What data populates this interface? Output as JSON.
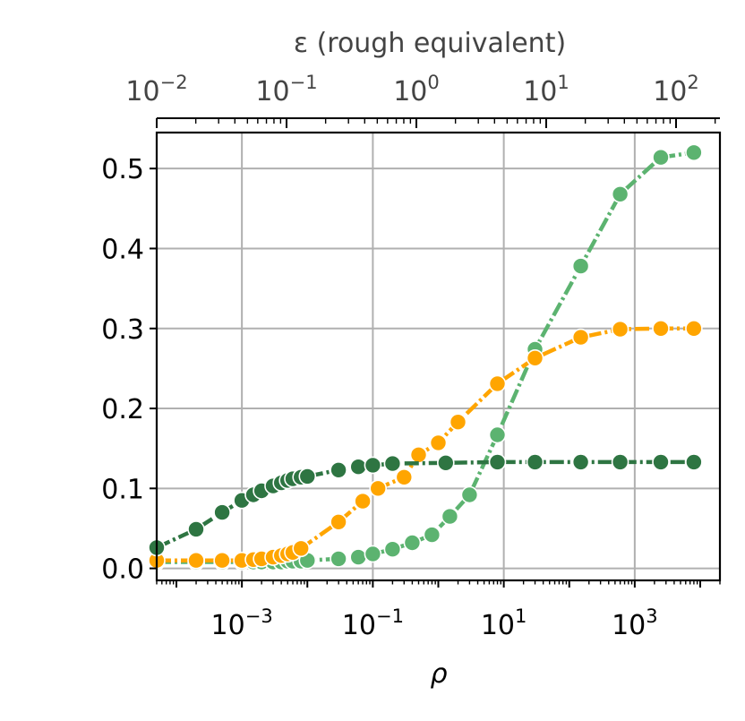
{
  "chart_data": {
    "type": "line",
    "x_scale": "log",
    "xlabel": "ρ",
    "xlim": [
      5e-05,
      20000
    ],
    "x_ticks": [
      {
        "value": 0.001,
        "label_base": "10",
        "label_exp": "−3"
      },
      {
        "value": 0.1,
        "label_base": "10",
        "label_exp": "−1"
      },
      {
        "value": 10,
        "label_base": "10",
        "label_exp": "1"
      },
      {
        "value": 1000,
        "label_base": "10",
        "label_exp": "3"
      }
    ],
    "top_axis": {
      "xlabel": "ε (rough equivalent)",
      "ticks": [
        {
          "label_base": "10",
          "label_exp": "−2"
        },
        {
          "label_base": "10",
          "label_exp": "−1"
        },
        {
          "label_base": "10",
          "label_exp": "0"
        },
        {
          "label_base": "10",
          "label_exp": "1"
        },
        {
          "label_base": "10",
          "label_exp": "2"
        }
      ]
    },
    "ylim": [
      -0.015,
      0.545
    ],
    "y_ticks": [
      "0.0",
      "0.1",
      "0.2",
      "0.3",
      "0.4",
      "0.5"
    ],
    "grid": true,
    "legend": "none",
    "series": [
      {
        "color": "#5cb370",
        "line_style": "dash-dot",
        "x": [
          5e-05,
          0.0002,
          0.0005,
          0.001,
          0.0015,
          0.002,
          0.003,
          0.004,
          0.005,
          0.006,
          0.008,
          0.01,
          0.03,
          0.06,
          0.1,
          0.2,
          0.4,
          0.8,
          1.5,
          3,
          8,
          30,
          150,
          600,
          2500,
          8000
        ],
        "y": [
          0.008,
          0.008,
          0.008,
          0.008,
          0.008,
          0.008,
          0.008,
          0.008,
          0.009,
          0.009,
          0.009,
          0.01,
          0.012,
          0.014,
          0.018,
          0.024,
          0.032,
          0.042,
          0.065,
          0.092,
          0.167,
          0.274,
          0.378,
          0.468,
          0.514,
          0.52
        ]
      },
      {
        "color": "#ffa500",
        "line_style": "dash-dot",
        "x": [
          5e-05,
          0.0002,
          0.0005,
          0.001,
          0.0015,
          0.002,
          0.003,
          0.004,
          0.005,
          0.006,
          0.008,
          0.03,
          0.07,
          0.12,
          0.3,
          0.5,
          1,
          2,
          8,
          30,
          150,
          600,
          2500,
          8000
        ],
        "y": [
          0.01,
          0.01,
          0.01,
          0.01,
          0.011,
          0.012,
          0.014,
          0.016,
          0.018,
          0.02,
          0.025,
          0.058,
          0.084,
          0.1,
          0.114,
          0.142,
          0.157,
          0.183,
          0.231,
          0.263,
          0.289,
          0.299,
          0.3,
          0.3
        ]
      },
      {
        "color": "#2e7542",
        "line_style": "dash-dot",
        "x": [
          5e-05,
          0.0002,
          0.0005,
          0.001,
          0.0015,
          0.002,
          0.003,
          0.004,
          0.005,
          0.006,
          0.008,
          0.01,
          0.03,
          0.06,
          0.1,
          0.2,
          1.3,
          8,
          30,
          150,
          600,
          2500,
          8000
        ],
        "y": [
          0.026,
          0.049,
          0.07,
          0.085,
          0.092,
          0.097,
          0.103,
          0.107,
          0.11,
          0.112,
          0.114,
          0.115,
          0.123,
          0.127,
          0.129,
          0.131,
          0.132,
          0.133,
          0.133,
          0.133,
          0.133,
          0.133,
          0.133
        ]
      }
    ]
  }
}
